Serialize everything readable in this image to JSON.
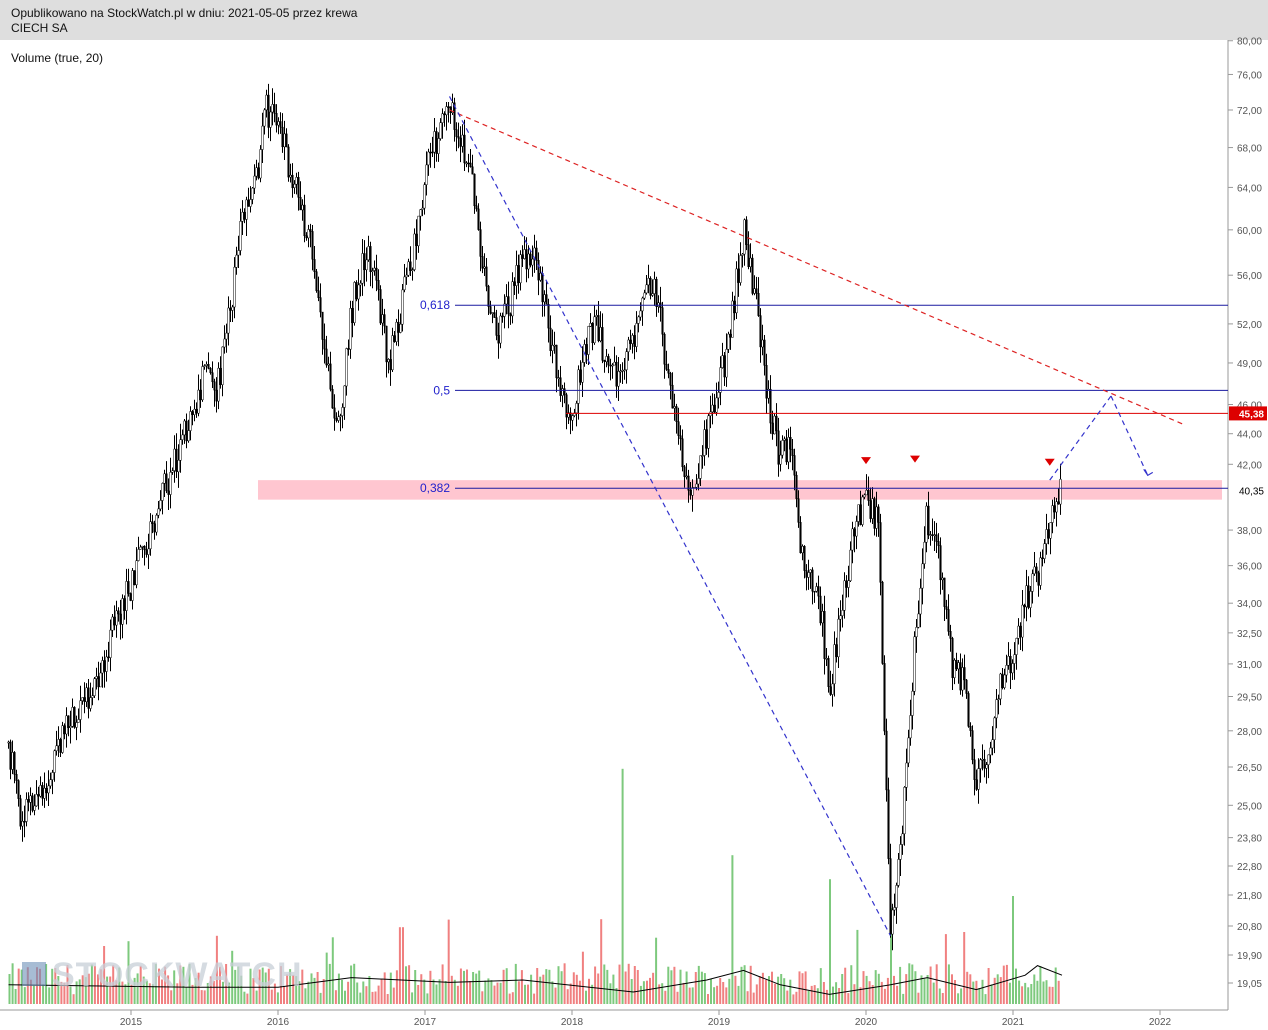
{
  "header": {
    "published_line": "Opublikowano na StockWatch.pl w dniu: 2021-05-05 przez krewa",
    "company": "CIECH SA"
  },
  "indicator_label": "Volume (true, 20)",
  "watermark": "STOCKWATCH",
  "colors": {
    "candle": "#000000",
    "fib_line": "#1a1aa0",
    "resistance_line": "#dd0000",
    "price_badge_bg": "#dd0000",
    "support_zone": "#ffc0cb",
    "trend_dashed_red": "#dd2222",
    "trend_dashed_blue": "#3333cc",
    "volume_up": "#7dc97d",
    "volume_down": "#f08080",
    "volume_ma": "#000000",
    "marker": "#dd0000"
  },
  "chart_data": {
    "type": "candlestick",
    "title": "CIECH SA",
    "x_axis": {
      "labels": [
        "2015",
        "2016",
        "2017",
        "2018",
        "2019",
        "2020",
        "2021",
        "2022"
      ]
    },
    "y_axis": {
      "labels": [
        "80,00",
        "76,00",
        "72,00",
        "68,00",
        "64,00",
        "60,00",
        "56,00",
        "52,00",
        "49,00",
        "46,00",
        "44,00",
        "42,00",
        "40,35",
        "38,00",
        "36,00",
        "34,00",
        "32,50",
        "31,00",
        "29,50",
        "28,00",
        "26,50",
        "25,00",
        "23,80",
        "22,80",
        "21,80",
        "20,80",
        "19,90",
        "19,05"
      ],
      "scale": "log"
    },
    "price_path": [
      [
        "2014-03",
        27.5
      ],
      [
        "2014-04",
        24.5
      ],
      [
        "2014-06",
        25.5
      ],
      [
        "2014-08",
        28.5
      ],
      [
        "2014-10",
        30.0
      ],
      [
        "2014-12",
        33.5
      ],
      [
        "2015-01",
        35.0
      ],
      [
        "2015-03",
        39.0
      ],
      [
        "2015-05",
        43.0
      ],
      [
        "2015-07",
        48.0
      ],
      [
        "2015-08",
        47.0
      ],
      [
        "2015-09",
        52.5
      ],
      [
        "2015-10",
        60.5
      ],
      [
        "2015-11",
        63.0
      ],
      [
        "2015-12",
        72.0
      ],
      [
        "2016-01",
        70.5
      ],
      [
        "2016-02",
        66.0
      ],
      [
        "2016-03",
        61.5
      ],
      [
        "2016-04",
        57.0
      ],
      [
        "2016-05",
        49.0
      ],
      [
        "2016-06",
        44.0
      ],
      [
        "2016-07",
        53.0
      ],
      [
        "2016-08",
        58.0
      ],
      [
        "2016-09",
        56.0
      ],
      [
        "2016-10",
        48.5
      ],
      [
        "2016-11",
        53.0
      ],
      [
        "2016-12",
        58.0
      ],
      [
        "2017-01",
        65.0
      ],
      [
        "2017-02",
        69.0
      ],
      [
        "2017-03",
        72.5
      ],
      [
        "2017-04",
        69.5
      ],
      [
        "2017-05",
        63.0
      ],
      [
        "2017-06",
        55.0
      ],
      [
        "2017-07",
        51.0
      ],
      [
        "2017-08",
        54.0
      ],
      [
        "2017-09",
        57.5
      ],
      [
        "2017-10",
        58.0
      ],
      [
        "2017-11",
        52.0
      ],
      [
        "2017-12",
        48.0
      ],
      [
        "2018-01",
        44.5
      ],
      [
        "2018-02",
        50.0
      ],
      [
        "2018-03",
        52.0
      ],
      [
        "2018-04",
        48.5
      ],
      [
        "2018-05",
        48.0
      ],
      [
        "2018-06",
        51.0
      ],
      [
        "2018-07",
        56.0
      ],
      [
        "2018-08",
        54.5
      ],
      [
        "2018-09",
        46.5
      ],
      [
        "2018-10",
        42.0
      ],
      [
        "2018-11",
        40.5
      ],
      [
        "2018-12",
        44.0
      ],
      [
        "2019-01",
        47.0
      ],
      [
        "2019-02",
        52.0
      ],
      [
        "2019-03",
        60.0
      ],
      [
        "2019-04",
        54.0
      ],
      [
        "2019-05",
        46.5
      ],
      [
        "2019-06",
        42.5
      ],
      [
        "2019-07",
        43.0
      ],
      [
        "2019-08",
        35.0
      ],
      [
        "2019-09",
        35.5
      ],
      [
        "2019-10",
        29.8
      ],
      [
        "2019-11",
        33.5
      ],
      [
        "2019-12",
        38.0
      ],
      [
        "2020-01",
        39.5
      ],
      [
        "2020-02",
        38.5
      ],
      [
        "2020-03",
        20.5
      ],
      [
        "2020-04",
        24.5
      ],
      [
        "2020-05",
        32.0
      ],
      [
        "2020-06",
        39.0
      ],
      [
        "2020-07",
        36.0
      ],
      [
        "2020-08",
        31.0
      ],
      [
        "2020-09",
        30.0
      ],
      [
        "2020-10",
        26.0
      ],
      [
        "2020-11",
        26.8
      ],
      [
        "2020-12",
        30.0
      ],
      [
        "2021-01",
        31.0
      ],
      [
        "2021-02",
        34.0
      ],
      [
        "2021-03",
        35.5
      ],
      [
        "2021-04",
        38.0
      ],
      [
        "2021-05",
        41.0
      ]
    ],
    "volume_ma_path": [
      [
        "2014-03",
        0.08
      ],
      [
        "2015-06",
        0.07
      ],
      [
        "2016-01",
        0.07
      ],
      [
        "2016-07",
        0.11
      ],
      [
        "2017-03",
        0.09
      ],
      [
        "2017-09",
        0.1
      ],
      [
        "2018-06",
        0.05
      ],
      [
        "2018-12",
        0.1
      ],
      [
        "2019-03",
        0.14
      ],
      [
        "2019-06",
        0.08
      ],
      [
        "2019-10",
        0.04
      ],
      [
        "2020-03",
        0.08
      ],
      [
        "2020-06",
        0.11
      ],
      [
        "2020-10",
        0.06
      ],
      [
        "2021-02",
        0.12
      ],
      [
        "2021-03",
        0.16
      ],
      [
        "2021-05",
        0.12
      ]
    ],
    "volume_spikes": [
      [
        "2018-05",
        0.98
      ],
      [
        "2019-02",
        0.62
      ],
      [
        "2019-10",
        0.52
      ],
      [
        "2020-03",
        0.4
      ],
      [
        "2020-09",
        0.3
      ],
      [
        "2021-01",
        0.45
      ],
      [
        "2016-11",
        0.32
      ]
    ],
    "fibonacci_levels": [
      {
        "label": "0,618",
        "value": 53.5
      },
      {
        "label": "0,5",
        "value": 47.0
      },
      {
        "label": "0,382",
        "value": 40.5
      }
    ],
    "resistance_level": {
      "value": 45.38,
      "label": "45,38"
    },
    "current_price_label": "40,35",
    "support_zone": {
      "low": 39.8,
      "high": 41.0
    },
    "red_markers": [
      [
        "2020-01",
        42.2
      ],
      [
        "2020-05",
        42.3
      ],
      [
        "2021-04",
        42.1
      ]
    ],
    "trend_lines": [
      {
        "style": "red-dashed",
        "from": [
          "2017-03",
          72.0
        ],
        "to": [
          "2022-03",
          44.6
        ]
      },
      {
        "style": "blue-dashed",
        "from": [
          "2017-03",
          73.5
        ],
        "to": [
          "2020-03",
          20.5
        ]
      },
      {
        "style": "blue-dashed",
        "from": [
          "2021-04",
          41.0
        ],
        "to": [
          "2021-09",
          46.6
        ]
      },
      {
        "style": "blue-dashed",
        "from": [
          "2021-09",
          46.6
        ],
        "to": [
          "2021-12",
          41.3
        ]
      }
    ]
  }
}
